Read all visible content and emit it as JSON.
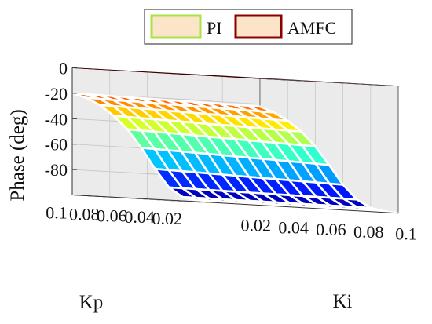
{
  "chart_data": {
    "type": "surface3d",
    "zlabel": "Phase (deg)",
    "xlabel": "Kp",
    "ylabel": "Ki",
    "kp_ticks": [
      "0.1",
      "0.08",
      "0.06",
      "0.04",
      "0.02"
    ],
    "ki_ticks": [
      "0.02",
      "0.04",
      "0.06",
      "0.08",
      "0.1"
    ],
    "z_ticks": [
      "0",
      "-20",
      "-40",
      "-60",
      "-80"
    ],
    "kp_range": [
      0,
      0.1
    ],
    "ki_range": [
      0,
      0.1
    ],
    "zlim": [
      -100,
      0
    ],
    "grid": true,
    "legend_position": "top-right",
    "series": [
      {
        "name": "PI",
        "kind": "surface",
        "colormap": "jet",
        "grid_points_kp": [
          0.0,
          0.01,
          0.02,
          0.03,
          0.04,
          0.05,
          0.06,
          0.07,
          0.08,
          0.09,
          0.1
        ],
        "phase_at_ki_0_by_kp": [
          -100,
          -99,
          -97,
          -90,
          -76,
          -60,
          -46,
          -36,
          -28,
          -23,
          -20
        ],
        "phase_at_ki_max_by_kp": [
          -100,
          -99,
          -97,
          -91,
          -80,
          -65,
          -51,
          -40,
          -32,
          -26,
          -22
        ]
      },
      {
        "name": "AMFC",
        "kind": "plane",
        "phase_deg": 0,
        "color": "#8b0000"
      }
    ]
  }
}
